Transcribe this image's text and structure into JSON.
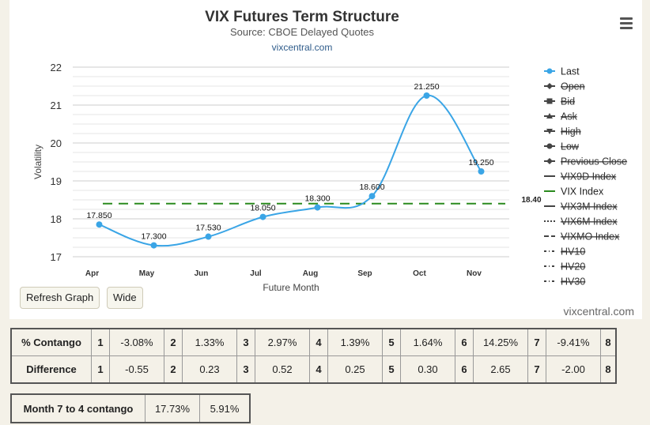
{
  "chart_data": {
    "type": "line",
    "title": "VIX Futures Term Structure",
    "subtitle": "Source: CBOE Delayed Quotes",
    "site": "vixcentral.com",
    "xlabel": "Future Month",
    "ylabel": "Volatility",
    "ylim": [
      17,
      22
    ],
    "yticks": [
      17,
      18,
      19,
      20,
      21,
      22
    ],
    "categories": [
      "Apr",
      "May",
      "Jun",
      "Jul",
      "Aug",
      "Sep",
      "Oct",
      "Nov"
    ],
    "series": [
      {
        "name": "Last",
        "color": "#3aa5e6",
        "values": [
          17.85,
          17.3,
          17.53,
          18.05,
          18.3,
          18.6,
          21.25,
          19.25
        ],
        "labels": [
          "17.850",
          "17.300",
          "17.530",
          "18.050",
          "18.300",
          "18.600",
          "21.250",
          "19.250"
        ]
      },
      {
        "name": "VIX Index",
        "color": "#2a8a1e",
        "value": 18.4,
        "label": "18.40",
        "style": "dashed"
      }
    ],
    "legend": {
      "placement": "right",
      "items": [
        {
          "name": "Last",
          "marker": "circle",
          "active": true,
          "color": "#3aa5e6"
        },
        {
          "name": "Open",
          "marker": "diamond",
          "active": false
        },
        {
          "name": "Bid",
          "marker": "square",
          "active": false
        },
        {
          "name": "Ask",
          "marker": "triangle",
          "active": false
        },
        {
          "name": "High",
          "marker": "triangle-down",
          "active": false
        },
        {
          "name": "Low",
          "marker": "circle",
          "active": false
        },
        {
          "name": "Previous Close",
          "marker": "diamond",
          "active": false
        },
        {
          "name": "VIX9D Index",
          "marker": "line",
          "active": false
        },
        {
          "name": "VIX Index",
          "marker": "line",
          "active": true,
          "color": "#2a8a1e"
        },
        {
          "name": "VIX3M Index",
          "marker": "line",
          "active": false
        },
        {
          "name": "VIX6M Index",
          "marker": "dotted",
          "active": false
        },
        {
          "name": "VIXMO Index",
          "marker": "dashed",
          "active": false
        },
        {
          "name": "HV10",
          "marker": "dashdot",
          "active": false
        },
        {
          "name": "HV20",
          "marker": "dashdot",
          "active": false
        },
        {
          "name": "HV30",
          "marker": "dashdot",
          "active": false
        }
      ]
    },
    "grid": true
  },
  "buttons": {
    "refresh": "Refresh Graph",
    "wide": "Wide"
  },
  "watermark": "vixcentral.com",
  "contango_table": {
    "rows": [
      {
        "label": "% Contango",
        "cells": [
          "1",
          "-3.08%",
          "2",
          "1.33%",
          "3",
          "2.97%",
          "4",
          "1.39%",
          "5",
          "1.64%",
          "6",
          "14.25%",
          "7",
          "-9.41%",
          "8"
        ]
      },
      {
        "label": "Difference",
        "cells": [
          "1",
          "-0.55",
          "2",
          "0.23",
          "3",
          "0.52",
          "4",
          "0.25",
          "5",
          "0.30",
          "6",
          "2.65",
          "7",
          "-2.00",
          "8"
        ]
      }
    ]
  },
  "month_table": {
    "label": "Month 7 to 4 contango",
    "v1": "17.73%",
    "v2": "5.91%"
  }
}
